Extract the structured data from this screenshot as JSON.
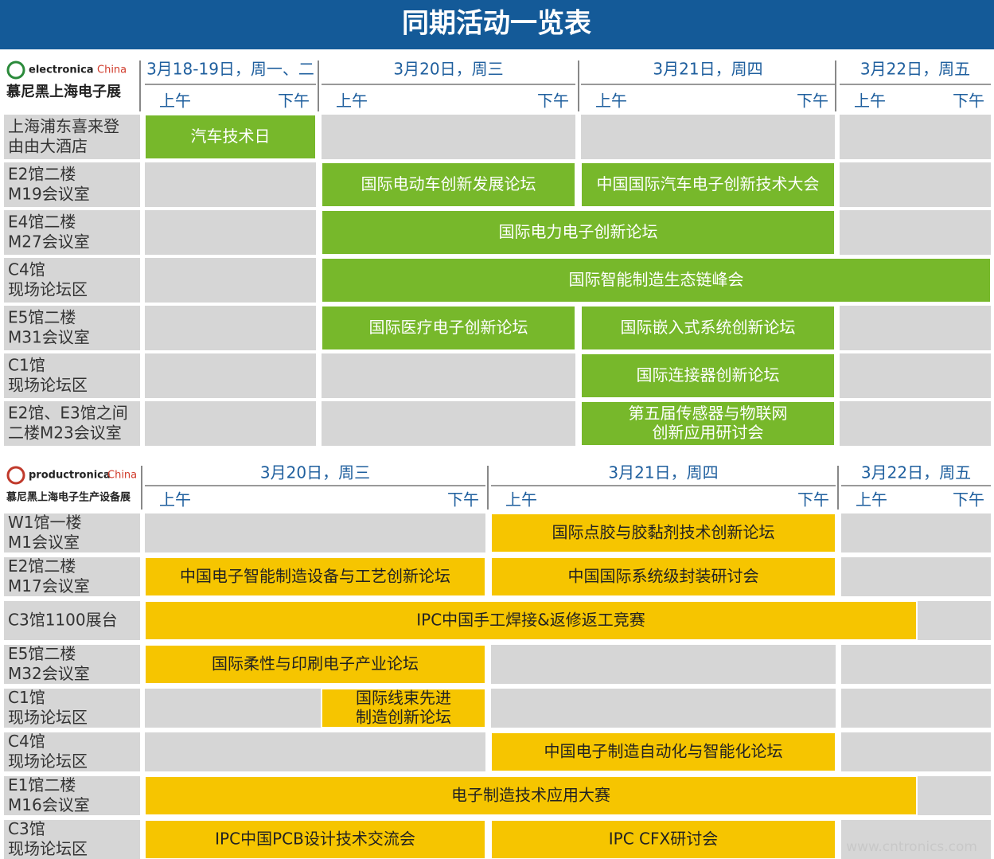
{
  "title": "同期活动一览表",
  "sections": [
    {
      "brand": "electronica",
      "brand_suffix": "China",
      "brand_cn": "慕尼黑上海电子展",
      "days": [
        {
          "date": "3月18-19日，周一、二",
          "am": "上午",
          "pm": "下午"
        },
        {
          "date": "3月20日，周三",
          "am": "上午",
          "pm": "下午"
        },
        {
          "date": "3月21日，周四",
          "am": "上午",
          "pm": "下午"
        },
        {
          "date": "3月22日，周五",
          "am": "上午",
          "pm": "下午"
        }
      ],
      "rows": [
        {
          "location": [
            "上海浦东喜来登",
            "由由大酒店"
          ],
          "events": [
            {
              "lines": [
                "汽车技术日"
              ]
            }
          ]
        },
        {
          "location": [
            "E2馆二楼",
            "M19会议室"
          ],
          "events": [
            {
              "lines": [
                "国际电动车创新发展论坛"
              ]
            },
            {
              "lines": [
                "中国国际汽车电子创新技术大会"
              ]
            }
          ]
        },
        {
          "location": [
            "E4馆二楼",
            "M27会议室"
          ],
          "events": [
            {
              "lines": [
                "国际电力电子创新论坛"
              ]
            }
          ]
        },
        {
          "location": [
            "C4馆",
            "现场论坛区"
          ],
          "events": [
            {
              "lines": [
                "国际智能制造生态链峰会"
              ]
            }
          ]
        },
        {
          "location": [
            "E5馆二楼",
            "M31会议室"
          ],
          "events": [
            {
              "lines": [
                "国际医疗电子创新论坛"
              ]
            },
            {
              "lines": [
                "国际嵌入式系统创新论坛"
              ]
            }
          ]
        },
        {
          "location": [
            "C1馆",
            "现场论坛区"
          ],
          "events": [
            {
              "lines": [
                "国际连接器创新论坛"
              ]
            }
          ]
        },
        {
          "location": [
            "E2馆、E3馆之间",
            "二楼M23会议室"
          ],
          "events": [
            {
              "lines": [
                "第五届传感器与物联网",
                "创新应用研讨会"
              ]
            }
          ]
        }
      ]
    },
    {
      "brand": "productronica",
      "brand_suffix": "China",
      "brand_cn": "慕尼黑上海电子生产设备展",
      "days": [
        {
          "date": "3月20日，周三",
          "am": "上午",
          "pm": "下午"
        },
        {
          "date": "3月21日，周四",
          "am": "上午",
          "pm": "下午"
        },
        {
          "date": "3月22日，周五",
          "am": "上午",
          "pm": "下午"
        }
      ],
      "rows": [
        {
          "location": [
            "W1馆一楼",
            "M1会议室"
          ],
          "events": [
            {
              "lines": [
                "国际点胶与胶黏剂技术创新论坛"
              ]
            }
          ]
        },
        {
          "location": [
            "E2馆二楼",
            "M17会议室"
          ],
          "events": [
            {
              "lines": [
                "中国电子智能制造设备与工艺创新论坛"
              ]
            },
            {
              "lines": [
                "中国国际系统级封装研讨会"
              ]
            }
          ]
        },
        {
          "location": [
            "C3馆1100展台"
          ],
          "events": [
            {
              "lines": [
                "IPC中国手工焊接&返修返工竞赛"
              ]
            }
          ]
        },
        {
          "location": [
            "E5馆二楼",
            "M32会议室"
          ],
          "events": [
            {
              "lines": [
                "国际柔性与印刷电子产业论坛"
              ]
            }
          ]
        },
        {
          "location": [
            "C1馆",
            "现场论坛区"
          ],
          "events": [
            {
              "lines": [
                "国际线束先进",
                "制造创新论坛"
              ]
            }
          ]
        },
        {
          "location": [
            "C4馆",
            "现场论坛区"
          ],
          "events": [
            {
              "lines": [
                "中国电子制造自动化与智能化论坛"
              ]
            }
          ]
        },
        {
          "location": [
            "E1馆二楼",
            "M16会议室"
          ],
          "events": [
            {
              "lines": [
                "电子制造技术应用大赛"
              ]
            }
          ]
        },
        {
          "location": [
            "C3馆",
            "现场论坛区"
          ],
          "events": [
            {
              "lines": [
                "IPC中国PCB设计技术交流会"
              ]
            },
            {
              "lines": [
                "IPC CFX研讨会"
              ]
            }
          ]
        }
      ]
    }
  ],
  "watermark": "www.cntronics.com"
}
